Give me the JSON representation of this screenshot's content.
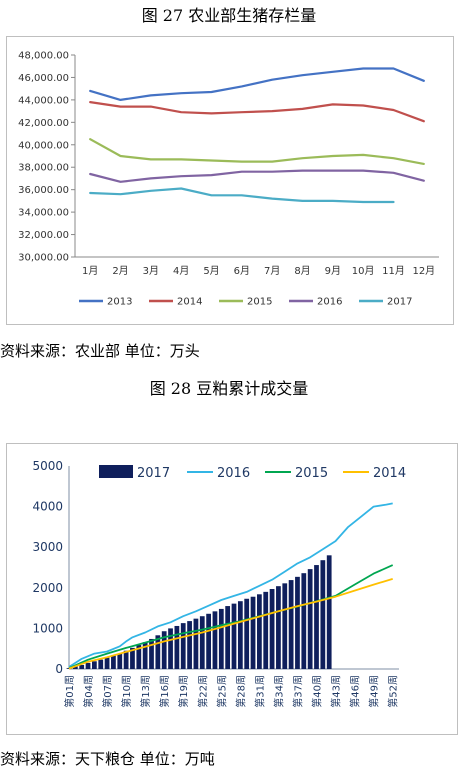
{
  "figure27": {
    "title": "图 27  农业部生猪存栏量",
    "source": "资料来源：农业部  单位：万头"
  },
  "figure28": {
    "title": "图 28  豆粕累计成交量",
    "source": "资料来源：天下粮仓  单位：万吨"
  },
  "chart_data": [
    {
      "type": "line",
      "title": "图 27  农业部生猪存栏量",
      "categories": [
        "1月",
        "2月",
        "3月",
        "4月",
        "5月",
        "6月",
        "7月",
        "8月",
        "9月",
        "10月",
        "11月",
        "12月"
      ],
      "y_ticks": [
        "30,000.00",
        "32,000.00",
        "34,000.00",
        "36,000.00",
        "38,000.00",
        "40,000.00",
        "42,000.00",
        "44,000.00",
        "46,000.00",
        "48,000.00"
      ],
      "ylim": [
        30000,
        48000
      ],
      "grid": false,
      "legend_position": "bottom",
      "series": [
        {
          "name": "2013",
          "color": "#4472c4",
          "values": [
            44800,
            44000,
            44400,
            44600,
            44700,
            45200,
            45800,
            46200,
            46500,
            46800,
            46800,
            45700
          ]
        },
        {
          "name": "2014",
          "color": "#c0504d",
          "values": [
            43800,
            43400,
            43400,
            42900,
            42800,
            42900,
            43000,
            43200,
            43600,
            43500,
            43100,
            42100
          ]
        },
        {
          "name": "2015",
          "color": "#9bbb59",
          "values": [
            40500,
            39000,
            38700,
            38700,
            38600,
            38500,
            38500,
            38800,
            39000,
            39100,
            38800,
            38300
          ]
        },
        {
          "name": "2016",
          "color": "#8064a2",
          "values": [
            37400,
            36700,
            37000,
            37200,
            37300,
            37600,
            37600,
            37700,
            37700,
            37700,
            37500,
            36800
          ]
        },
        {
          "name": "2017",
          "color": "#4bacc6",
          "values": [
            35700,
            35600,
            35900,
            36100,
            35500,
            35500,
            35200,
            35000,
            35000,
            34900,
            34900,
            null
          ]
        }
      ]
    },
    {
      "type": "bar",
      "title": "图 28  豆粕累计成交量",
      "x_tick_labels": [
        "第01周",
        "第04周",
        "第07周",
        "第10周",
        "第13周",
        "第16周",
        "第19周",
        "第22周",
        "第25周",
        "第28周",
        "第31周",
        "第34周",
        "第37周",
        "第40周",
        "第43周",
        "第46周",
        "第49周",
        "第52周"
      ],
      "y_ticks": [
        "0",
        "1000",
        "2000",
        "3000",
        "4000",
        "5000"
      ],
      "ylim": [
        0,
        5000
      ],
      "legend_position": "top",
      "bar_series": {
        "name": "2017",
        "color": "#0f1f5c",
        "weeks": [
          1,
          2,
          3,
          4,
          5,
          6,
          7,
          8,
          9,
          10,
          11,
          12,
          13,
          14,
          15,
          16,
          17,
          18,
          19,
          20,
          21,
          22,
          23,
          24,
          25,
          26,
          27,
          28,
          29,
          30,
          31,
          32,
          33,
          34,
          35,
          36,
          37,
          38,
          39,
          40,
          41,
          42
        ],
        "values": [
          20,
          60,
          100,
          150,
          190,
          230,
          280,
          330,
          380,
          450,
          520,
          590,
          660,
          740,
          830,
          930,
          1000,
          1060,
          1130,
          1180,
          1240,
          1300,
          1360,
          1420,
          1480,
          1550,
          1610,
          1670,
          1730,
          1780,
          1840,
          1900,
          1970,
          2040,
          2110,
          2190,
          2270,
          2360,
          2460,
          2560,
          2680,
          2800
        ]
      },
      "line_series": [
        {
          "name": "2016",
          "color": "#33b5e5",
          "weeks": [
            1,
            3,
            5,
            7,
            9,
            10,
            11,
            13,
            15,
            17,
            19,
            21,
            23,
            25,
            27,
            29,
            31,
            33,
            35,
            37,
            39,
            41,
            43,
            45,
            47,
            49,
            51,
            52
          ],
          "values": [
            50,
            250,
            380,
            430,
            560,
            680,
            780,
            900,
            1050,
            1150,
            1300,
            1420,
            1560,
            1700,
            1800,
            1900,
            2050,
            2200,
            2400,
            2600,
            2750,
            2950,
            3150,
            3500,
            3750,
            4000,
            4050,
            4080
          ]
        },
        {
          "name": "2015",
          "color": "#00a650",
          "weeks": [
            1,
            4,
            7,
            10,
            13,
            16,
            19,
            22,
            25,
            28,
            31,
            34,
            37,
            40,
            43,
            46,
            49,
            52
          ],
          "values": [
            20,
            230,
            380,
            520,
            650,
            780,
            880,
            970,
            1080,
            1180,
            1300,
            1420,
            1540,
            1670,
            1800,
            2080,
            2350,
            2560
          ]
        },
        {
          "name": "2014",
          "color": "#ffc000",
          "weeks": [
            1,
            4,
            7,
            10,
            13,
            16,
            19,
            22,
            25,
            28,
            31,
            34,
            37,
            40,
            43,
            46,
            49,
            52
          ],
          "values": [
            10,
            180,
            290,
            420,
            550,
            680,
            790,
            900,
            1030,
            1160,
            1290,
            1420,
            1550,
            1660,
            1780,
            1930,
            2080,
            2220
          ]
        }
      ]
    }
  ]
}
